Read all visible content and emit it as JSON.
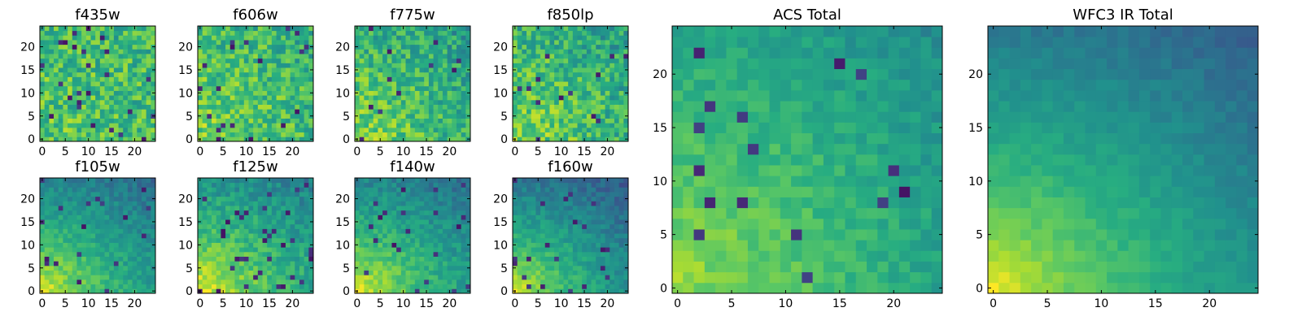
{
  "chart_data": [
    {
      "type": "heatmap",
      "title": "f435w",
      "x_ticks": [
        "0",
        "5",
        "10",
        "15",
        "20"
      ],
      "y_ticks": [
        "0",
        "5",
        "10",
        "15",
        "20"
      ],
      "xlim": [
        0,
        24
      ],
      "ylim": [
        0,
        24
      ],
      "colormap": "viridis",
      "pattern": "uniform",
      "seed": 11,
      "base": 0.76,
      "gradient": 0.08,
      "noise": 0.36,
      "dark_spots": 0.03
    },
    {
      "type": "heatmap",
      "title": "f606w",
      "x_ticks": [
        "0",
        "5",
        "10",
        "15",
        "20"
      ],
      "y_ticks": [
        "0",
        "5",
        "10",
        "15",
        "20"
      ],
      "xlim": [
        0,
        24
      ],
      "ylim": [
        0,
        24
      ],
      "colormap": "viridis",
      "pattern": "uniform",
      "seed": 22,
      "base": 0.72,
      "gradient": 0.18,
      "noise": 0.34,
      "dark_spots": 0.03
    },
    {
      "type": "heatmap",
      "title": "f775w",
      "x_ticks": [
        "0",
        "5",
        "10",
        "15",
        "20"
      ],
      "y_ticks": [
        "0",
        "5",
        "10",
        "15",
        "20"
      ],
      "xlim": [
        0,
        24
      ],
      "ylim": [
        0,
        24
      ],
      "colormap": "viridis",
      "pattern": "uniform",
      "seed": 33,
      "base": 0.64,
      "gradient": 0.28,
      "noise": 0.32,
      "dark_spots": 0.02
    },
    {
      "type": "heatmap",
      "title": "f850lp",
      "x_ticks": [
        "0",
        "5",
        "10",
        "15",
        "20"
      ],
      "y_ticks": [
        "0",
        "5",
        "10",
        "15",
        "20"
      ],
      "xlim": [
        0,
        24
      ],
      "ylim": [
        0,
        24
      ],
      "colormap": "viridis",
      "pattern": "uniform",
      "seed": 44,
      "base": 0.66,
      "gradient": 0.26,
      "noise": 0.34,
      "dark_spots": 0.02
    },
    {
      "type": "heatmap",
      "title": "f105w",
      "x_ticks": [
        "0",
        "5",
        "10",
        "15",
        "20"
      ],
      "y_ticks": [
        "0",
        "5",
        "10",
        "15",
        "20"
      ],
      "xlim": [
        0,
        24
      ],
      "ylim": [
        0,
        24
      ],
      "colormap": "viridis",
      "pattern": "gradient",
      "seed": 55,
      "base": 0.45,
      "gradient": 0.55,
      "noise": 0.16,
      "dark_spots": 0.03
    },
    {
      "type": "heatmap",
      "title": "f125w",
      "x_ticks": [
        "0",
        "5",
        "10",
        "15",
        "20"
      ],
      "y_ticks": [
        "0",
        "5",
        "10",
        "15",
        "20"
      ],
      "xlim": [
        0,
        24
      ],
      "ylim": [
        0,
        24
      ],
      "colormap": "viridis",
      "pattern": "gradient",
      "seed": 66,
      "base": 0.52,
      "gradient": 0.5,
      "noise": 0.2,
      "dark_spots": 0.04
    },
    {
      "type": "heatmap",
      "title": "f140w",
      "x_ticks": [
        "0",
        "5",
        "10",
        "15",
        "20"
      ],
      "y_ticks": [
        "0",
        "5",
        "10",
        "15",
        "20"
      ],
      "xlim": [
        0,
        24
      ],
      "ylim": [
        0,
        24
      ],
      "colormap": "viridis",
      "pattern": "gradient",
      "seed": 77,
      "base": 0.46,
      "gradient": 0.55,
      "noise": 0.17,
      "dark_spots": 0.03
    },
    {
      "type": "heatmap",
      "title": "f160w",
      "x_ticks": [
        "0",
        "5",
        "10",
        "15",
        "20"
      ],
      "y_ticks": [
        "0",
        "5",
        "10",
        "15",
        "20"
      ],
      "xlim": [
        0,
        24
      ],
      "ylim": [
        0,
        24
      ],
      "colormap": "viridis",
      "pattern": "gradient",
      "seed": 88,
      "base": 0.38,
      "gradient": 0.62,
      "noise": 0.15,
      "dark_spots": 0.03
    },
    {
      "type": "heatmap",
      "title": "ACS Total",
      "x_ticks": [
        "0",
        "5",
        "10",
        "15",
        "20"
      ],
      "y_ticks": [
        "0",
        "5",
        "10",
        "15",
        "20"
      ],
      "xlim": [
        0,
        24
      ],
      "ylim": [
        0,
        24
      ],
      "colormap": "viridis",
      "pattern": "uniform",
      "seed": 99,
      "base": 0.58,
      "gradient": 0.36,
      "noise": 0.14,
      "dark_spots": 0.025
    },
    {
      "type": "heatmap",
      "title": "WFC3 IR Total",
      "x_ticks": [
        "0",
        "5",
        "10",
        "15",
        "20"
      ],
      "y_ticks": [
        "0",
        "5",
        "10",
        "15",
        "20"
      ],
      "xlim": [
        0,
        24
      ],
      "ylim": [
        0,
        24
      ],
      "colormap": "viridis",
      "pattern": "gradient",
      "seed": 111,
      "base": 0.4,
      "gradient": 0.62,
      "noise": 0.08,
      "dark_spots": 0.0
    }
  ]
}
